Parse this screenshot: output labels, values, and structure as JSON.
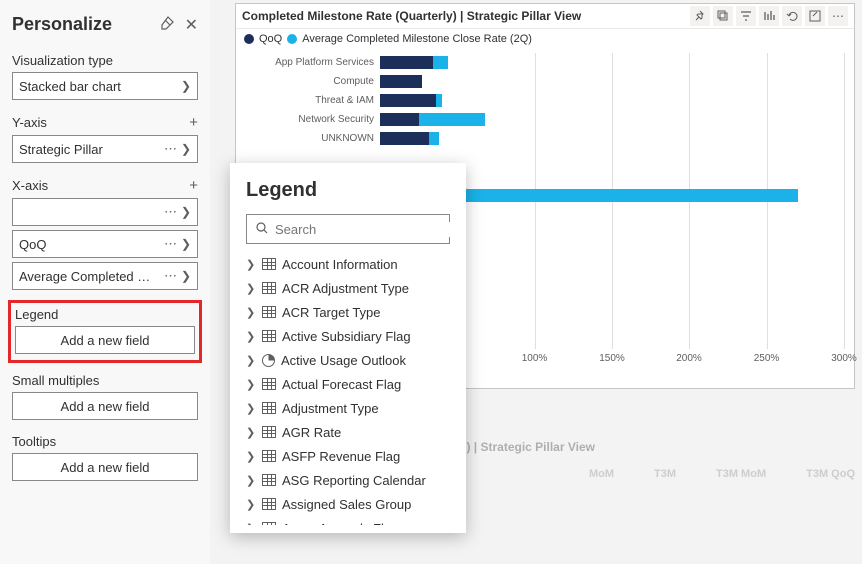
{
  "panel": {
    "title": "Personalize",
    "viz_type_label": "Visualization type",
    "viz_type_value": "Stacked bar chart",
    "yaxis_label": "Y-axis",
    "yaxis_value": "Strategic Pillar",
    "xaxis_label": "X-axis",
    "xaxis_values": [
      "",
      "QoQ",
      "Average Completed …"
    ],
    "legend_label": "Legend",
    "small_multiples_label": "Small multiples",
    "tooltips_label": "Tooltips",
    "add_field_label": "Add a new field"
  },
  "popup": {
    "title": "Legend",
    "search_placeholder": "Search",
    "fields": [
      {
        "label": "Account Information",
        "icon": "table"
      },
      {
        "label": "ACR Adjustment Type",
        "icon": "table"
      },
      {
        "label": "ACR Target Type",
        "icon": "table"
      },
      {
        "label": "Active Subsidiary Flag",
        "icon": "table"
      },
      {
        "label": "Active Usage Outlook",
        "icon": "pie"
      },
      {
        "label": "Actual Forecast Flag",
        "icon": "table"
      },
      {
        "label": "Adjustment Type",
        "icon": "table"
      },
      {
        "label": "AGR Rate",
        "icon": "table"
      },
      {
        "label": "ASFP Revenue Flag",
        "icon": "table"
      },
      {
        "label": "ASG Reporting Calendar",
        "icon": "table"
      },
      {
        "label": "Assigned Sales Group",
        "icon": "table"
      },
      {
        "label": "Azure Anomaly Flag",
        "icon": "table"
      }
    ]
  },
  "chart": {
    "title": "Completed Milestone Rate (Quarterly) | Strategic Pillar View",
    "legend": [
      {
        "label": "QoQ",
        "color": "#1c2e5a"
      },
      {
        "label": "Average Completed Milestone Close Rate (2Q)",
        "color": "#1ab2e8"
      }
    ],
    "categories": [
      "App Platform Services",
      "Compute",
      "Threat & IAM",
      "Network Security",
      "UNKNOWN",
      "",
      "",
      "",
      "",
      "",
      ""
    ],
    "series1_color": "#1c2e5a",
    "series2_color": "#1ab2e8",
    "bars": [
      {
        "s1": 34,
        "s2": 10
      },
      {
        "s1": 27,
        "s2": 0
      },
      {
        "s1": 36,
        "s2": 4
      },
      {
        "s1": 25,
        "s2": 43
      },
      {
        "s1": 32,
        "s2": 6
      },
      {
        "s1": 0,
        "s2": 0
      },
      {
        "s1": 0,
        "s2": 0
      },
      {
        "s1": 40,
        "s2": 230
      },
      {
        "s1": 0,
        "s2": 0
      },
      {
        "s1": 0,
        "s2": 0
      },
      {
        "s1": 35,
        "s2": 20
      }
    ],
    "xticks": [
      {
        "pos": 33.3,
        "label": "100%"
      },
      {
        "pos": 50,
        "label": "150%"
      },
      {
        "pos": 66.6,
        "label": "200%"
      },
      {
        "pos": 83.3,
        "label": "250%"
      },
      {
        "pos": 100,
        "label": "300%"
      }
    ],
    "xmax": 300
  },
  "faded": {
    "title": ") | Strategic Pillar View",
    "cols": [
      "MoM",
      "T3M",
      "T3M MoM",
      "T3M QoQ"
    ]
  }
}
